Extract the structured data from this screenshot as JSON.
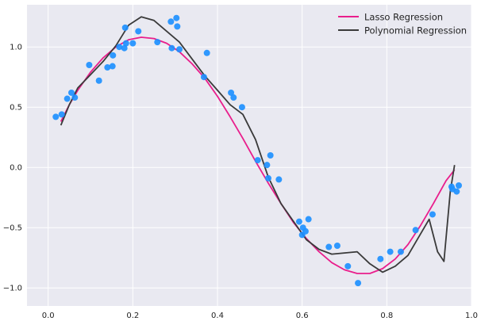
{
  "chart_data": {
    "type": "scatter",
    "title": "",
    "xlabel": "",
    "ylabel": "",
    "xlim": [
      -0.05,
      1.0
    ],
    "ylim": [
      -1.15,
      1.35
    ],
    "x_ticks": [
      0.0,
      0.2,
      0.4,
      0.6,
      0.8,
      1.0
    ],
    "x_tick_labels": [
      "0.0",
      "0.2",
      "0.4",
      "0.6",
      "0.8",
      "1.0"
    ],
    "y_ticks": [
      -1.0,
      -0.5,
      0.0,
      0.5,
      1.0
    ],
    "y_tick_labels": [
      "−1.0",
      "−0.5",
      "0.0",
      "0.5",
      "1.0"
    ],
    "grid": true,
    "legend_position": "top-right",
    "scatter": {
      "color": "#1e90ff",
      "points": [
        [
          0.018,
          0.42
        ],
        [
          0.032,
          0.44
        ],
        [
          0.045,
          0.57
        ],
        [
          0.055,
          0.62
        ],
        [
          0.063,
          0.58
        ],
        [
          0.097,
          0.85
        ],
        [
          0.12,
          0.72
        ],
        [
          0.14,
          0.83
        ],
        [
          0.152,
          0.84
        ],
        [
          0.153,
          0.93
        ],
        [
          0.168,
          1.0
        ],
        [
          0.18,
          0.99
        ],
        [
          0.182,
          1.16
        ],
        [
          0.184,
          1.03
        ],
        [
          0.2,
          1.03
        ],
        [
          0.213,
          1.13
        ],
        [
          0.258,
          1.04
        ],
        [
          0.29,
          1.21
        ],
        [
          0.292,
          0.99
        ],
        [
          0.303,
          1.24
        ],
        [
          0.305,
          1.17
        ],
        [
          0.31,
          0.98
        ],
        [
          0.368,
          0.75
        ],
        [
          0.375,
          0.95
        ],
        [
          0.432,
          0.62
        ],
        [
          0.438,
          0.58
        ],
        [
          0.458,
          0.5
        ],
        [
          0.495,
          0.06
        ],
        [
          0.517,
          0.02
        ],
        [
          0.52,
          -0.09
        ],
        [
          0.525,
          0.1
        ],
        [
          0.545,
          -0.1
        ],
        [
          0.593,
          -0.45
        ],
        [
          0.6,
          -0.56
        ],
        [
          0.602,
          -0.5
        ],
        [
          0.608,
          -0.53
        ],
        [
          0.615,
          -0.43
        ],
        [
          0.663,
          -0.66
        ],
        [
          0.683,
          -0.65
        ],
        [
          0.708,
          -0.82
        ],
        [
          0.732,
          -0.96
        ],
        [
          0.785,
          -0.76
        ],
        [
          0.808,
          -0.7
        ],
        [
          0.833,
          -0.7
        ],
        [
          0.868,
          -0.52
        ],
        [
          0.908,
          -0.39
        ],
        [
          0.953,
          -0.16
        ],
        [
          0.955,
          -0.18
        ],
        [
          0.965,
          -0.2
        ],
        [
          0.97,
          -0.15
        ]
      ]
    },
    "series": [
      {
        "name": "Lasso Regression",
        "color": "#e91e8c",
        "x": [
          0.03,
          0.05,
          0.07,
          0.1,
          0.13,
          0.16,
          0.19,
          0.22,
          0.25,
          0.28,
          0.31,
          0.34,
          0.37,
          0.4,
          0.43,
          0.46,
          0.49,
          0.52,
          0.55,
          0.58,
          0.61,
          0.64,
          0.67,
          0.7,
          0.73,
          0.76,
          0.79,
          0.82,
          0.85,
          0.88,
          0.91,
          0.94,
          0.96
        ],
        "y": [
          0.38,
          0.52,
          0.64,
          0.79,
          0.91,
          1.0,
          1.06,
          1.08,
          1.07,
          1.03,
          0.96,
          0.86,
          0.74,
          0.59,
          0.42,
          0.24,
          0.05,
          -0.13,
          -0.3,
          -0.46,
          -0.59,
          -0.7,
          -0.79,
          -0.85,
          -0.88,
          -0.88,
          -0.84,
          -0.76,
          -0.64,
          -0.48,
          -0.3,
          -0.11,
          -0.02
        ]
      },
      {
        "name": "Polynomial Regression",
        "color": "#3a3a3a",
        "x": [
          0.03,
          0.05,
          0.07,
          0.1,
          0.13,
          0.16,
          0.19,
          0.22,
          0.25,
          0.28,
          0.31,
          0.34,
          0.37,
          0.4,
          0.43,
          0.46,
          0.49,
          0.52,
          0.55,
          0.58,
          0.61,
          0.64,
          0.67,
          0.7,
          0.73,
          0.76,
          0.79,
          0.82,
          0.85,
          0.88,
          0.9,
          0.92,
          0.935,
          0.95,
          0.96
        ],
        "y": [
          0.35,
          0.52,
          0.66,
          0.77,
          0.88,
          1.01,
          1.18,
          1.25,
          1.22,
          1.13,
          1.04,
          0.9,
          0.76,
          0.64,
          0.52,
          0.44,
          0.23,
          -0.08,
          -0.3,
          -0.45,
          -0.6,
          -0.68,
          -0.72,
          -0.71,
          -0.7,
          -0.8,
          -0.87,
          -0.82,
          -0.73,
          -0.55,
          -0.43,
          -0.7,
          -0.78,
          -0.2,
          0.02
        ]
      }
    ]
  }
}
